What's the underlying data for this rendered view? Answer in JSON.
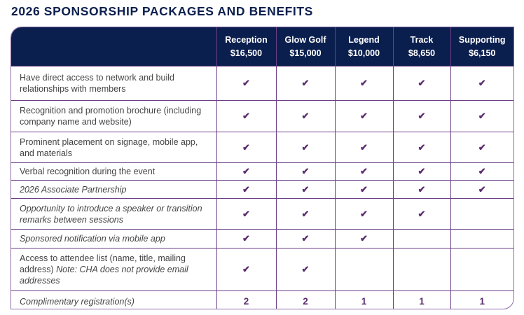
{
  "title": "2026 SPONSORSHIP PACKAGES AND BENEFITS",
  "columns": [
    {
      "name": "Reception",
      "price": "$16,500"
    },
    {
      "name": "Glow Golf",
      "price": "$15,000"
    },
    {
      "name": "Legend",
      "price": "$10,000"
    },
    {
      "name": "Track",
      "price": "$8,650"
    },
    {
      "name": "Supporting",
      "price": "$6,150"
    }
  ],
  "colors": {
    "header": "#0b1f4e",
    "border": "#6b3f86",
    "check": "#5a2c6e"
  },
  "check_icon": "✔",
  "rows": [
    {
      "benefit": "Have direct access to network and build relationships with members",
      "italic": false,
      "cells": [
        true,
        true,
        true,
        true,
        true
      ]
    },
    {
      "benefit": "Recognition and promotion brochure (including company name and website)",
      "italic": false,
      "cells": [
        true,
        true,
        true,
        true,
        true
      ]
    },
    {
      "benefit": "Prominent placement on signage, mobile app, and materials",
      "italic": false,
      "cells": [
        true,
        true,
        true,
        true,
        true
      ]
    },
    {
      "benefit": "Verbal recognition during the event",
      "italic": false,
      "cells": [
        true,
        true,
        true,
        true,
        true
      ]
    },
    {
      "benefit": "2026 Associate Partnership",
      "italic": true,
      "cells": [
        true,
        true,
        true,
        true,
        true
      ]
    },
    {
      "benefit": "Opportunity to introduce a speaker or transition remarks between sessions",
      "italic": true,
      "cells": [
        true,
        true,
        true,
        true,
        false
      ]
    },
    {
      "benefit": "Sponsored notification via mobile app",
      "italic": true,
      "cells": [
        true,
        true,
        true,
        false,
        false
      ]
    },
    {
      "benefit": "Access to attendee list (name, title, mailing address)",
      "note": "Note: CHA does not provide email addresses",
      "italic": false,
      "cells": [
        true,
        true,
        false,
        false,
        false
      ]
    },
    {
      "benefit": "Complimentary registration(s)",
      "italic": true,
      "cells": [
        "2",
        "2",
        "1",
        "1",
        "1"
      ]
    }
  ]
}
